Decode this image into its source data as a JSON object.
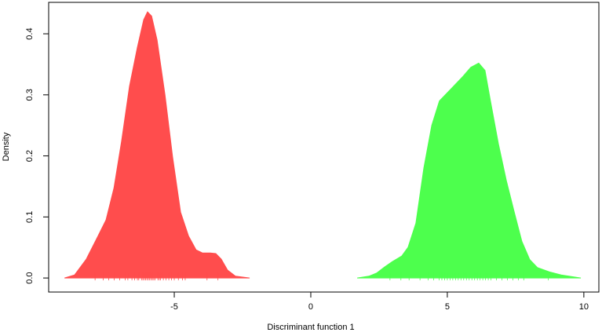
{
  "chart_data": {
    "type": "density",
    "xlabel": "Discriminant function 1",
    "ylabel": "Density",
    "xlim": [
      -9.6,
      10.55
    ],
    "ylim": [
      -0.023,
      0.4515
    ],
    "xticks": [
      -5,
      0,
      5,
      10
    ],
    "yticks": [
      {
        "value": 0,
        "label": "0.0"
      },
      0.1,
      0.2,
      0.3,
      0.4
    ],
    "series": [
      {
        "color": "#ff4d4d",
        "x": [
          -9.02,
          -8.65,
          -8.22,
          -7.79,
          -7.5,
          -7.21,
          -6.93,
          -6.64,
          -6.35,
          -6.12,
          -5.98,
          -5.83,
          -5.63,
          -5.34,
          -5.06,
          -4.77,
          -4.48,
          -4.2,
          -3.97,
          -3.68,
          -3.48,
          -3.28,
          -3.05,
          -2.76,
          -2.24
        ],
        "values": [
          0,
          0.005,
          0.031,
          0.069,
          0.095,
          0.147,
          0.224,
          0.314,
          0.378,
          0.423,
          0.436,
          0.429,
          0.39,
          0.3,
          0.198,
          0.108,
          0.069,
          0.046,
          0.041,
          0.041,
          0.04,
          0.031,
          0.013,
          0.003,
          0
        ],
        "rug": [
          -7.9,
          -7.6,
          -7.4,
          -7.2,
          -7.0,
          -6.8,
          -6.7,
          -6.55,
          -6.45,
          -6.35,
          -6.3,
          -6.2,
          -6.15,
          -6.1,
          -6.05,
          -6.0,
          -5.95,
          -5.9,
          -5.85,
          -5.8,
          -5.75,
          -5.7,
          -5.6,
          -5.55,
          -5.5,
          -5.4,
          -5.3,
          -5.2,
          -5.1,
          -5.0,
          -4.85,
          -4.7,
          -4.6,
          -3.8,
          -3.4
        ]
      },
      {
        "color": "#4dff4d",
        "x": [
          1.7,
          2.13,
          2.41,
          2.7,
          2.99,
          3.33,
          3.56,
          3.85,
          4.14,
          4.43,
          4.71,
          5.14,
          5.57,
          5.86,
          6.15,
          6.38,
          6.58,
          6.87,
          7.16,
          7.44,
          7.73,
          8.02,
          8.3,
          8.74,
          9.17,
          9.89
        ],
        "values": [
          0,
          0.003,
          0.008,
          0.018,
          0.027,
          0.036,
          0.05,
          0.09,
          0.18,
          0.25,
          0.29,
          0.31,
          0.33,
          0.345,
          0.352,
          0.34,
          0.29,
          0.22,
          0.16,
          0.11,
          0.06,
          0.03,
          0.017,
          0.01,
          0.005,
          0
        ],
        "rug": [
          2.9,
          3.3,
          3.6,
          4.0,
          4.3,
          4.5,
          4.7,
          4.8,
          4.9,
          5.0,
          5.1,
          5.2,
          5.3,
          5.4,
          5.5,
          5.6,
          5.7,
          5.8,
          5.9,
          6.0,
          6.1,
          6.2,
          6.3,
          6.4,
          6.5,
          6.6,
          6.8,
          7.0,
          7.2,
          7.4,
          7.6,
          7.8,
          8.7
        ]
      }
    ]
  }
}
